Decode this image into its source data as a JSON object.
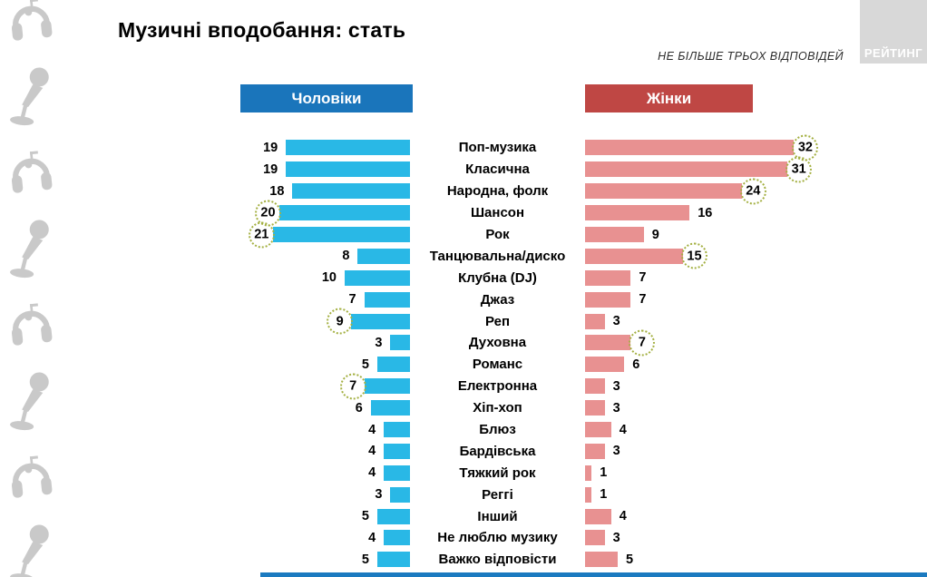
{
  "title": "Музичні вподобання: стать",
  "note": "НЕ БІЛЬШЕ ТРЬОХ ВІДПОВІДЕЙ",
  "logo_text": "РЕЙТИНГ",
  "legend": {
    "men": "Чоловіки",
    "women": "Жінки"
  },
  "colors": {
    "men_bar": "#29b8e6",
    "men_header": "#1a75bb",
    "women_bar": "#e89191",
    "women_header": "#bf4744",
    "highlight_circle": "#a4b042",
    "logo_bg": "#d8d8d8",
    "rail_icons": "#c9c9c9",
    "footer_strip": "#1b7ac0"
  },
  "left_rail_icons": [
    "headphones-note-icon",
    "microphone-icon",
    "headphones-note-icon",
    "microphone-icon",
    "headphones-note-icon",
    "microphone-icon",
    "headphones-note-icon",
    "microphone-icon"
  ],
  "chart_data": {
    "type": "bar",
    "orientation": "horizontal-butterfly",
    "title": "Музичні вподобання: стать",
    "subtitle": "НЕ БІЛЬШЕ ТРЬОХ ВІДПОВІДЕЙ",
    "legend_position": "top",
    "grid": false,
    "xlim": [
      0,
      32
    ],
    "categories": [
      "Поп-музика",
      "Класична",
      "Народна, фолк",
      "Шансон",
      "Рок",
      "Танцювальна/диско",
      "Клубна (DJ)",
      "Джаз",
      "Реп",
      "Духовна",
      "Романс",
      "Електронна",
      "Хіп-хоп",
      "Блюз",
      "Бардівська",
      "Тяжкий рок",
      "Реггі",
      "Інший",
      "Не люблю музику",
      "Важко відповісти"
    ],
    "series": [
      {
        "name": "Чоловіки",
        "values": [
          19,
          19,
          18,
          20,
          21,
          8,
          10,
          7,
          9,
          3,
          5,
          7,
          6,
          4,
          4,
          4,
          3,
          5,
          4,
          5
        ],
        "circled_indices": [
          3,
          4,
          8,
          11
        ]
      },
      {
        "name": "Жінки",
        "values": [
          32,
          31,
          24,
          16,
          9,
          15,
          7,
          7,
          3,
          7,
          6,
          3,
          3,
          4,
          3,
          1,
          1,
          4,
          3,
          5
        ],
        "circled_indices": [
          0,
          1,
          2,
          5,
          9
        ]
      }
    ]
  }
}
